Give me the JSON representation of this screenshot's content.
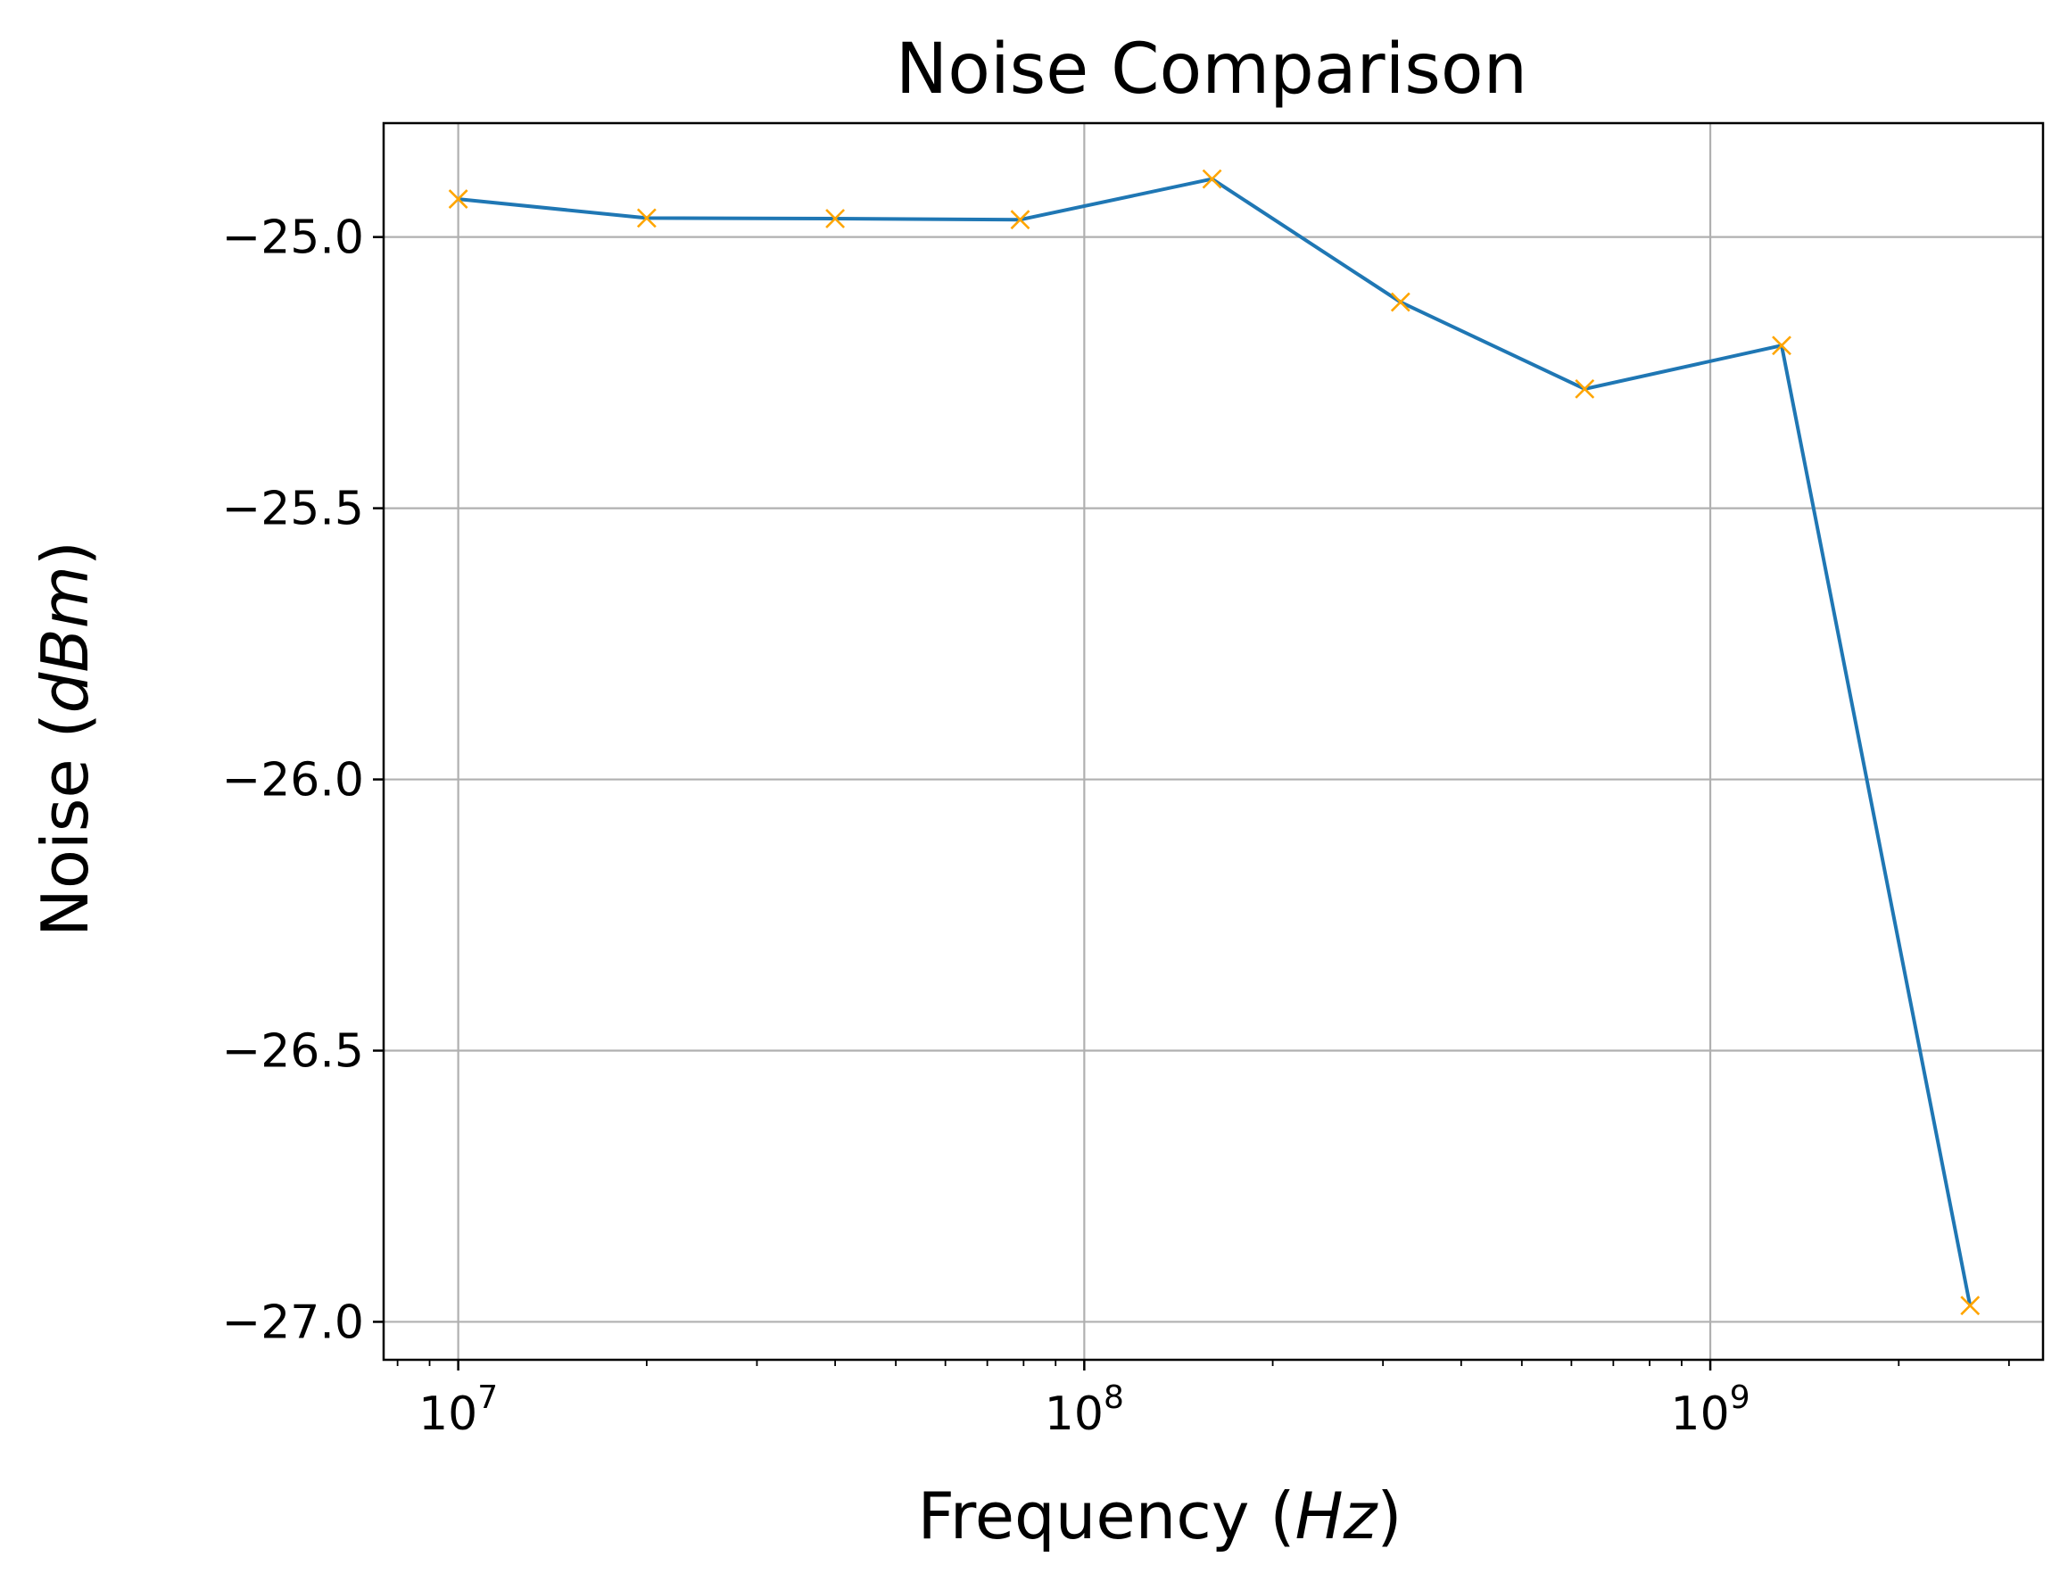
{
  "chart_data": {
    "type": "line",
    "title": "Noise Comparison",
    "xlabel": "Frequency",
    "xlabel_unit": "Hz",
    "ylabel": "Noise",
    "ylabel_unit": "dBm",
    "x_scale": "log",
    "xlim": [
      7600000.0,
      3400000000.0
    ],
    "ylim": [
      -27.07,
      -24.79
    ],
    "x_ticks": [
      {
        "value": 10000000.0,
        "base": "10",
        "exp": "7"
      },
      {
        "value": 100000000.0,
        "base": "10",
        "exp": "8"
      },
      {
        "value": 1000000000.0,
        "base": "10",
        "exp": "9"
      }
    ],
    "y_ticks": [
      {
        "value": -25.0,
        "label": "−25.0"
      },
      {
        "value": -25.5,
        "label": "−25.5"
      },
      {
        "value": -26.0,
        "label": "−26.0"
      },
      {
        "value": -26.5,
        "label": "−26.5"
      },
      {
        "value": -27.0,
        "label": "−27.0"
      }
    ],
    "grid": true,
    "legend": "none",
    "series": [
      {
        "line_color": "#1f77b4",
        "marker": "x",
        "marker_color": "#ffa500",
        "points": [
          {
            "x": 10000000.0,
            "y": -24.93
          },
          {
            "x": 20000000.0,
            "y": -24.965
          },
          {
            "x": 40000000.0,
            "y": -24.966
          },
          {
            "x": 79000000.0,
            "y": -24.968
          },
          {
            "x": 160000000.0,
            "y": -24.893
          },
          {
            "x": 320000000.0,
            "y": -25.12
          },
          {
            "x": 630000000.0,
            "y": -25.28
          },
          {
            "x": 1300000000.0,
            "y": -25.2
          },
          {
            "x": 2600000000.0,
            "y": -26.97
          }
        ]
      }
    ]
  }
}
